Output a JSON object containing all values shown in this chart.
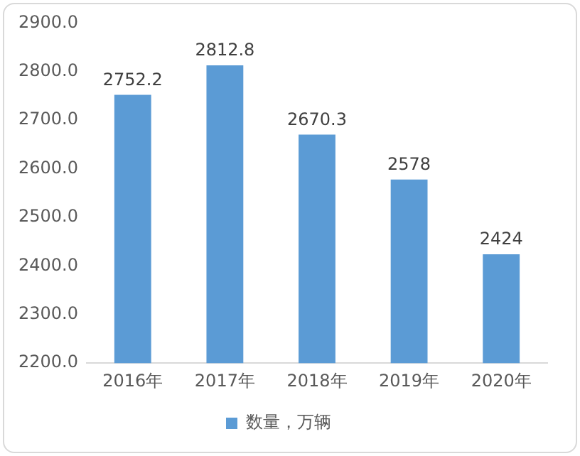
{
  "chart_data": {
    "type": "bar",
    "categories": [
      "2016年",
      "2017年",
      "2018年",
      "2019年",
      "2020年"
    ],
    "series": [
      {
        "name": "数量，万辆",
        "color": "#5b9bd5",
        "values": [
          2752.2,
          2812.8,
          2670.3,
          2578,
          2424
        ]
      }
    ],
    "ylim": [
      2200,
      2900
    ],
    "yticks": [
      {
        "value": 2200,
        "label": "2200.0"
      },
      {
        "value": 2300,
        "label": "2300.0"
      },
      {
        "value": 2400,
        "label": "2400.0"
      },
      {
        "value": 2500,
        "label": "2500.0"
      },
      {
        "value": 2600,
        "label": "2600.0"
      },
      {
        "value": 2700,
        "label": "2700.0"
      },
      {
        "value": 2800,
        "label": "2800.0"
      },
      {
        "value": 2900,
        "label": "2900.0"
      }
    ],
    "grid": false,
    "legend": "bottom",
    "data_labels": true
  }
}
